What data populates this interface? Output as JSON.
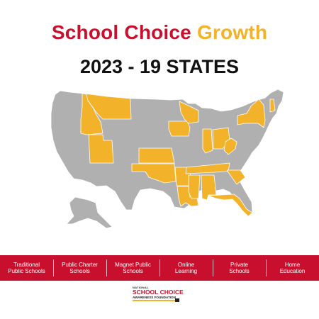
{
  "title": {
    "part1": "School Choice",
    "part2": "Growth"
  },
  "subtitle": "2023 - 19 STATES",
  "colors": {
    "title_red": "#c8102e",
    "title_gold": "#f2b229",
    "highlight": "#f2b229",
    "base": "#b0b0b0",
    "banner": "#c8102e"
  },
  "map": {
    "region": "United States",
    "highlighted_states": [
      "Montana",
      "Idaho",
      "Utah",
      "Kansas",
      "Oklahoma",
      "Iowa",
      "Wisconsin",
      "Arkansas",
      "Louisiana",
      "Mississippi",
      "Alabama",
      "Florida",
      "South Carolina",
      "Tennessee",
      "Indiana",
      "Ohio",
      "West Virginia",
      "New York",
      "New Hampshire"
    ]
  },
  "categories": [
    {
      "line1": "Traditional",
      "line2": "Public Schools"
    },
    {
      "line1": "Public Charter",
      "line2": "Schools"
    },
    {
      "line1": "Magnet Public",
      "line2": "Schools"
    },
    {
      "line1": "Online",
      "line2": "Learning"
    },
    {
      "line1": "Private",
      "line2": "Schools"
    },
    {
      "line1": "Home",
      "line2": "Education"
    }
  ],
  "logo": {
    "line1": "NATIONAL",
    "line2": "SCHOOL CHOICE",
    "line3": "AWARENESS FOUNDATION"
  }
}
